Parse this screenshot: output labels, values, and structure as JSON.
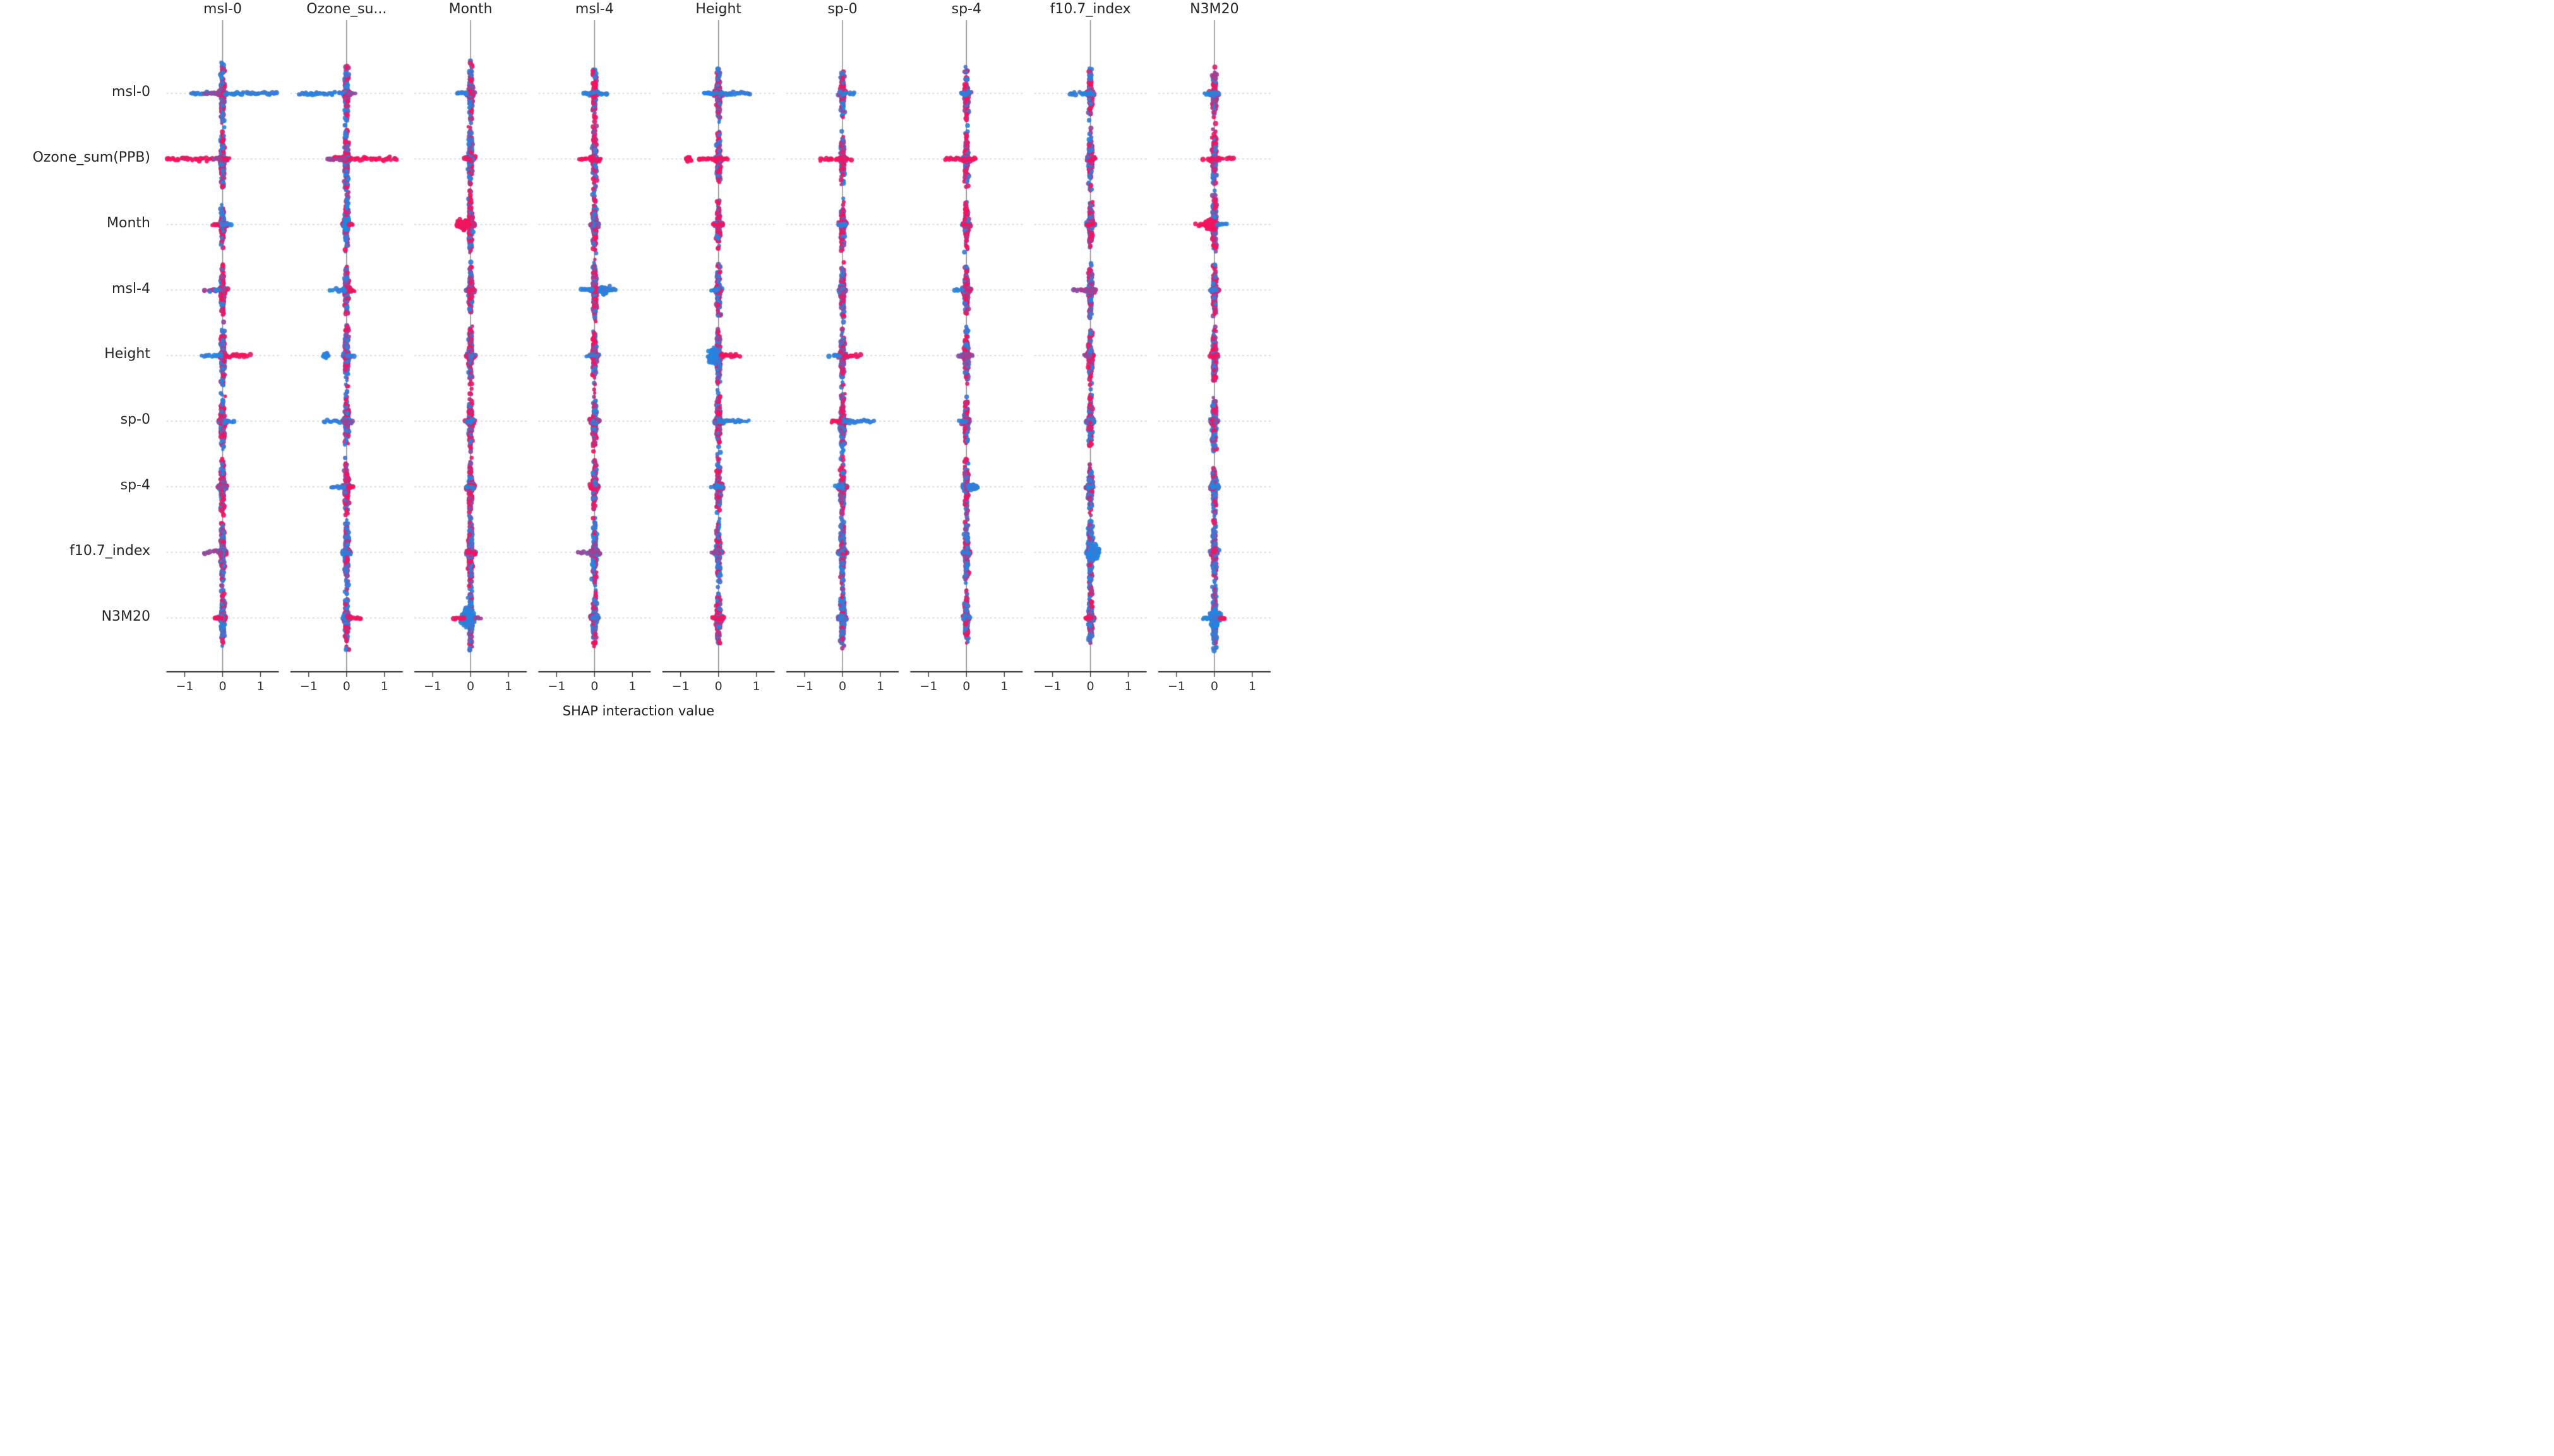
{
  "chart_data": {
    "type": "scatter",
    "subtype": "shap-interaction-beeswarm-grid",
    "title": "",
    "xlabel": "SHAP interaction value",
    "ylabel": "",
    "columns": [
      "msl-0",
      "Ozone_su...",
      "Month",
      "msl-4",
      "Height",
      "sp-0",
      "sp-4",
      "f10.7_index",
      "N3M20"
    ],
    "rows": [
      "msl-0",
      "Ozone_sum(PPB)",
      "Month",
      "msl-4",
      "Height",
      "sp-0",
      "sp-4",
      "f10.7_index",
      "N3M20"
    ],
    "x_ticks": [
      "−1",
      "0",
      "1"
    ],
    "x_tick_values": [
      -1,
      0,
      1
    ],
    "x_range": [
      -1.5,
      1.45
    ],
    "grid": "dotted-horizontal-per-row",
    "legend": "none",
    "palette": {
      "low_feature_value_blue": "#1E88E5",
      "high_feature_value_red": "#ff0d57",
      "purple_blend": "#8E4A9E",
      "zero_line": "#8c8c8c",
      "axis": "#2f2f2f",
      "gridline": "#d6d6d6",
      "text": "#262626",
      "background": "#ffffff"
    },
    "cells": [
      [
        {
          "v": 58,
          "t": 0.55,
          "s": [
            [
              0.05,
              1.45,
              "blue",
              5
            ],
            [
              -0.85,
              -0.35,
              "blue",
              4
            ],
            [
              -0.5,
              -0.05,
              "purple",
              4
            ]
          ]
        },
        {
          "v": 60,
          "t": 0.5,
          "s": [
            [
              -1.25,
              -0.05,
              "blue",
              5
            ],
            [
              0.05,
              0.25,
              "purple",
              4
            ]
          ]
        },
        {
          "v": 60,
          "t": 0.6,
          "s": [
            [
              -0.35,
              -0.1,
              "blue",
              4
            ]
          ]
        },
        {
          "v": 55,
          "t": 0.6,
          "s": [
            [
              -0.3,
              -0.1,
              "blue",
              4
            ],
            [
              0.1,
              0.35,
              "blue",
              4
            ]
          ]
        },
        {
          "v": 55,
          "t": 0.6,
          "s": [
            [
              -0.4,
              -0.05,
              "blue",
              4
            ],
            [
              0.05,
              0.85,
              "blue",
              5
            ]
          ]
        },
        {
          "v": 50,
          "t": 0.6,
          "s": [
            [
              0.05,
              0.3,
              "blue",
              4
            ]
          ]
        },
        {
          "v": 50,
          "t": 0.65,
          "s": [
            [
              -0.15,
              0.1,
              "blue",
              4
            ]
          ]
        },
        {
          "v": 50,
          "t": 0.55,
          "s": [
            [
              -0.55,
              0.1,
              "blue",
              5
            ]
          ]
        },
        {
          "v": 50,
          "t": 0.6,
          "s": [
            [
              -0.25,
              0.05,
              "blue",
              4
            ]
          ]
        }
      ],
      [
        {
          "v": 60,
          "t": 0.5,
          "s": [
            [
              -1.45,
              -0.05,
              "red",
              5
            ],
            [
              0.0,
              0.2,
              "red",
              4
            ],
            [
              -0.25,
              -0.02,
              "purple",
              4
            ]
          ]
        },
        {
          "v": 70,
          "t": 0.5,
          "s": [
            [
              -0.45,
              1.35,
              "red",
              6
            ],
            [
              -0.5,
              -0.02,
              "purple",
              4
            ]
          ]
        },
        {
          "v": 65,
          "t": 0.45,
          "s": [
            [
              -0.18,
              0.02,
              "red",
              5
            ]
          ]
        },
        {
          "v": 60,
          "t": 0.55,
          "s": [
            [
              -0.4,
              0.2,
              "red",
              5
            ]
          ]
        },
        {
          "v": 55,
          "t": 0.5,
          "s": [
            [
              -0.5,
              0.25,
              "red",
              4
            ]
          ],
          "b": [
            [
              -0.8,
              5,
              4,
              "red"
            ]
          ]
        },
        {
          "v": 55,
          "t": 0.5,
          "s": [
            [
              -0.6,
              0.3,
              "red",
              5
            ]
          ]
        },
        {
          "v": 55,
          "t": 0.55,
          "s": [
            [
              -0.55,
              0.25,
              "red",
              5
            ]
          ]
        },
        {
          "v": 60,
          "t": 0.45,
          "s": [
            [
              -0.02,
              0.2,
              "red",
              4
            ]
          ]
        },
        {
          "v": 55,
          "t": 0.6,
          "s": [
            [
              -0.3,
              0.5,
              "red",
              4
            ]
          ]
        }
      ],
      [
        {
          "v": 42,
          "t": 0.6,
          "s": [
            [
              -0.28,
              0.0,
              "red",
              4
            ],
            [
              0.0,
              0.22,
              "blue",
              4
            ]
          ]
        },
        {
          "v": 55,
          "t": 0.5,
          "s": [
            [
              0.08,
              0.2,
              "red",
              3
            ]
          ],
          "b": [
            [
              0.0,
              5,
              9,
              "blue"
            ]
          ]
        },
        {
          "v": 60,
          "t": 0.7,
          "s": [
            [
              -0.38,
              -0.05,
              "red",
              5
            ]
          ],
          "b": [
            [
              -0.2,
              10,
              9,
              "red"
            ]
          ]
        },
        {
          "v": 60,
          "t": 0.65
        },
        {
          "v": 45,
          "t": 0.6,
          "s": [
            [
              -0.15,
              0.1,
              "red",
              4
            ]
          ]
        },
        {
          "v": 50,
          "t": 0.6,
          "s": [
            [
              -0.1,
              0.08,
              "blue",
              3
            ]
          ]
        },
        {
          "v": 50,
          "t": 0.65,
          "s": [
            [
              -0.08,
              0.08,
              "red",
              3
            ]
          ]
        },
        {
          "v": 55,
          "t": 0.6,
          "s": [
            [
              -0.1,
              0.1,
              "red",
              3
            ]
          ]
        },
        {
          "v": 60,
          "t": 0.7,
          "s": [
            [
              -0.5,
              -0.1,
              "red",
              4
            ],
            [
              0.08,
              0.35,
              "blue",
              4
            ]
          ],
          "b": [
            [
              -0.12,
              9,
              10,
              "red"
            ]
          ]
        }
      ],
      [
        {
          "v": 55,
          "t": 0.55,
          "s": [
            [
              -0.5,
              -0.02,
              "purple",
              4
            ],
            [
              -0.35,
              -0.05,
              "blue",
              4
            ]
          ]
        },
        {
          "v": 55,
          "t": 0.55,
          "s": [
            [
              -0.45,
              0.0,
              "blue",
              4
            ],
            [
              0.08,
              0.25,
              "red",
              3
            ]
          ]
        },
        {
          "v": 55,
          "t": 0.6
        },
        {
          "v": 60,
          "t": 0.72,
          "s": [
            [
              0.3,
              0.6,
              "blue",
              4
            ],
            [
              -0.35,
              -0.05,
              "blue",
              4
            ]
          ],
          "b": [
            [
              0.25,
              8,
              7,
              "blue"
            ]
          ]
        },
        {
          "v": 55,
          "t": 0.5,
          "s": [
            [
              -0.22,
              0.0,
              "blue",
              4
            ]
          ]
        },
        {
          "v": 55,
          "t": 0.55
        },
        {
          "v": 50,
          "t": 0.6,
          "s": [
            [
              -0.3,
              -0.08,
              "blue",
              3
            ]
          ]
        },
        {
          "v": 55,
          "t": 0.5,
          "s": [
            [
              -0.45,
              0.15,
              "purple",
              4
            ]
          ]
        },
        {
          "v": 55,
          "t": 0.65,
          "s": [
            [
              -0.1,
              0.08,
              "blue",
              3
            ]
          ]
        }
      ],
      [
        {
          "v": 60,
          "t": 0.5,
          "s": [
            [
              -0.55,
              -0.02,
              "blue",
              5
            ],
            [
              0.05,
              0.75,
              "red",
              5
            ]
          ]
        },
        {
          "v": 60,
          "t": 0.5,
          "s": [
            [
              0.02,
              0.22,
              "blue",
              4
            ]
          ],
          "b": [
            [
              -0.55,
              5,
              4,
              "blue"
            ]
          ]
        },
        {
          "v": 60,
          "t": 0.6
        },
        {
          "v": 60,
          "t": 0.55,
          "s": [
            [
              -0.22,
              0.0,
              "blue",
              4
            ]
          ]
        },
        {
          "v": 60,
          "t": 0.5,
          "s": [
            [
              0.05,
              0.55,
              "red",
              5
            ],
            [
              -0.3,
              -0.05,
              "blue",
              4
            ]
          ],
          "b": [
            [
              -0.12,
              8,
              14,
              "blue"
            ]
          ]
        },
        {
          "v": 60,
          "t": 0.5,
          "s": [
            [
              -0.35,
              -0.02,
              "blue",
              4
            ],
            [
              0.05,
              0.5,
              "red",
              4
            ]
          ]
        },
        {
          "v": 55,
          "t": 0.55,
          "s": [
            [
              -0.2,
              0.2,
              "purple",
              3
            ]
          ]
        },
        {
          "v": 55,
          "t": 0.55,
          "s": [
            [
              -0.18,
              0.0,
              "purple",
              3
            ]
          ]
        },
        {
          "v": 55,
          "t": 0.55,
          "s": [
            [
              -0.12,
              0.12,
              "red",
              3
            ]
          ]
        }
      ],
      [
        {
          "v": 55,
          "t": 0.55,
          "s": [
            [
              0.08,
              0.3,
              "blue",
              4
            ]
          ]
        },
        {
          "v": 55,
          "t": 0.5,
          "s": [
            [
              -0.6,
              0.0,
              "blue",
              5
            ],
            [
              -0.1,
              0.15,
              "purple",
              4
            ]
          ]
        },
        {
          "v": 55,
          "t": 0.6,
          "s": [
            [
              -0.08,
              0.08,
              "blue",
              3
            ]
          ]
        },
        {
          "v": 55,
          "t": 0.6
        },
        {
          "v": 60,
          "t": 0.55,
          "s": [
            [
              0.05,
              0.8,
              "blue",
              5
            ]
          ]
        },
        {
          "v": 60,
          "t": 0.5,
          "s": [
            [
              -0.3,
              -0.05,
              "red",
              4
            ],
            [
              0.05,
              0.85,
              "blue",
              5
            ]
          ]
        },
        {
          "v": 50,
          "t": 0.6,
          "s": [
            [
              -0.18,
              0.0,
              "blue",
              3
            ]
          ]
        },
        {
          "v": 60,
          "t": 0.45
        },
        {
          "v": 60,
          "t": 0.5
        }
      ],
      [
        {
          "v": 55,
          "t": 0.6,
          "s": [
            [
              -0.1,
              0.1,
              "purple",
              3
            ]
          ]
        },
        {
          "v": 55,
          "t": 0.55,
          "s": [
            [
              -0.42,
              0.0,
              "blue",
              4
            ],
            [
              0.05,
              0.18,
              "red",
              3
            ]
          ]
        },
        {
          "v": 55,
          "t": 0.6,
          "s": [
            [
              -0.12,
              0.05,
              "blue",
              3
            ]
          ]
        },
        {
          "v": 50,
          "t": 0.65
        },
        {
          "v": 55,
          "t": 0.6,
          "s": [
            [
              -0.18,
              0.18,
              "blue",
              3
            ]
          ]
        },
        {
          "v": 50,
          "t": 0.55,
          "s": [
            [
              -0.18,
              0.0,
              "blue",
              3
            ]
          ]
        },
        {
          "v": 55,
          "t": 0.6,
          "b": [
            [
              0.18,
              8,
              5,
              "blue"
            ]
          ]
        },
        {
          "v": 50,
          "t": 0.5,
          "s": [
            [
              -0.08,
              0.08,
              "blue",
              3
            ]
          ]
        },
        {
          "v": 50,
          "t": 0.55,
          "s": [
            [
              -0.08,
              0.08,
              "blue",
              3
            ]
          ]
        }
      ],
      [
        {
          "v": 68,
          "t": 0.35,
          "s": [
            [
              -0.5,
              -0.02,
              "purple",
              5
            ]
          ]
        },
        {
          "v": 68,
          "t": 0.4,
          "s": [
            [
              -0.08,
              0.08,
              "blue",
              3
            ]
          ]
        },
        {
          "v": 68,
          "t": 0.35,
          "s": [
            [
              -0.08,
              0.08,
              "red",
              3
            ]
          ]
        },
        {
          "v": 68,
          "t": 0.35,
          "s": [
            [
              -0.45,
              0.15,
              "purple",
              5
            ]
          ]
        },
        {
          "v": 68,
          "t": 0.4,
          "s": [
            [
              -0.18,
              0.0,
              "purple",
              3
            ]
          ]
        },
        {
          "v": 68,
          "t": 0.35
        },
        {
          "v": 60,
          "t": 0.4,
          "s": [
            [
              -0.08,
              0.08,
              "blue",
              3
            ]
          ]
        },
        {
          "v": 72,
          "t": 0.25,
          "b": [
            [
              0.08,
              9,
              13,
              "blue"
            ]
          ]
        },
        {
          "v": 72,
          "t": 0.3,
          "s": [
            [
              -0.1,
              0.05,
              "red",
              3
            ]
          ]
        }
      ],
      [
        {
          "v": 60,
          "t": 0.35,
          "s": [
            [
              -0.22,
              0.0,
              "red",
              3
            ]
          ]
        },
        {
          "v": 60,
          "t": 0.4,
          "s": [
            [
              0.05,
              0.4,
              "red",
              4
            ]
          ]
        },
        {
          "v": 65,
          "t": 0.3,
          "s": [
            [
              -0.45,
              -0.1,
              "red",
              4
            ],
            [
              0.1,
              0.28,
              "purple",
              4
            ]
          ],
          "b": [
            [
              -0.08,
              10,
              16,
              "blue"
            ]
          ]
        },
        {
          "v": 60,
          "t": 0.35,
          "s": [
            [
              -0.08,
              0.08,
              "blue",
              3
            ]
          ]
        },
        {
          "v": 60,
          "t": 0.4,
          "s": [
            [
              -0.15,
              0.15,
              "red",
              3
            ]
          ]
        },
        {
          "v": 60,
          "t": 0.35
        },
        {
          "v": 55,
          "t": 0.45
        },
        {
          "v": 60,
          "t": 0.35,
          "s": [
            [
              -0.15,
              0.0,
              "red",
              3
            ]
          ]
        },
        {
          "v": 65,
          "t": 0.4,
          "s": [
            [
              0.1,
              0.3,
              "red",
              4
            ],
            [
              -0.3,
              -0.05,
              "blue",
              4
            ]
          ],
          "b": [
            [
              0.02,
              9,
              14,
              "blue"
            ]
          ]
        }
      ]
    ]
  }
}
